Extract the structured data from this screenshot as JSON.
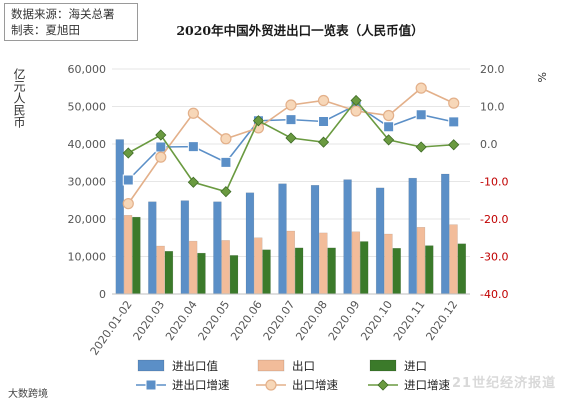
{
  "source": {
    "line1": "数据来源：海关总署",
    "line2": "制表：夏旭田"
  },
  "watermarks": {
    "left": "大数跨境",
    "right": "21世纪经济报道"
  },
  "colors": {
    "total_bar": "#5b8fc7",
    "export_bar": "#f2bc9a",
    "import_bar": "#3b7a2a",
    "total_growth": "#5b8fc7",
    "export_growth": "#e3b08a",
    "import_growth": "#6a9a40",
    "left_axis": "#555555",
    "right_axis_pos": "#555555",
    "right_axis_neg": "#c00000",
    "grid": "#e6e6e6"
  },
  "chart_data": {
    "type": "bar",
    "title": "2020年中国外贸进出口一览表（人民币值）",
    "ylabel": "亿元人民币",
    "y2label": "%",
    "ylim": [
      0,
      60000
    ],
    "y2lim": [
      -40,
      20
    ],
    "yticks": [
      "0",
      "10,000",
      "20,000",
      "30,000",
      "40,000",
      "50,000",
      "60,000"
    ],
    "y2ticks": [
      "-40.0",
      "-30.0",
      "-20.0",
      "-10.0",
      "0.0",
      "10.0",
      "20.0"
    ],
    "y2tick_values": [
      -40,
      -30,
      -20,
      -10,
      0,
      10,
      20
    ],
    "grid": true,
    "legend_position": "bottom",
    "categories": [
      "2020.01-02",
      "2020.03",
      "2020.04",
      "2020.05",
      "2020.06",
      "2020.07",
      "2020.08",
      "2020.09",
      "2020.10",
      "2020.11",
      "2020.12"
    ],
    "bar_series": [
      {
        "name": "进出口值",
        "values": [
          41200,
          24600,
          24900,
          24600,
          27000,
          29400,
          29000,
          30500,
          28300,
          30900,
          32000
        ]
      },
      {
        "name": "出口",
        "values": [
          21000,
          12800,
          14100,
          14300,
          15000,
          16800,
          16300,
          16600,
          16000,
          17800,
          18500
        ]
      },
      {
        "name": "进口",
        "values": [
          20500,
          11400,
          10900,
          10300,
          11800,
          12300,
          12300,
          14000,
          12200,
          12900,
          13400
        ]
      }
    ],
    "line_series": [
      {
        "name": "进出口增速",
        "values": [
          -9.6,
          -0.8,
          -0.7,
          -4.9,
          6.2,
          6.5,
          6.0,
          10.4,
          4.6,
          7.8,
          5.9
        ]
      },
      {
        "name": "出口增速",
        "values": [
          -15.9,
          -3.5,
          8.2,
          1.4,
          4.3,
          10.4,
          11.6,
          8.8,
          7.6,
          14.9,
          10.9
        ]
      },
      {
        "name": "进口增速",
        "values": [
          -2.4,
          2.4,
          -10.2,
          -12.7,
          6.2,
          1.6,
          0.5,
          11.6,
          1.1,
          -0.8,
          -0.2
        ]
      }
    ]
  }
}
